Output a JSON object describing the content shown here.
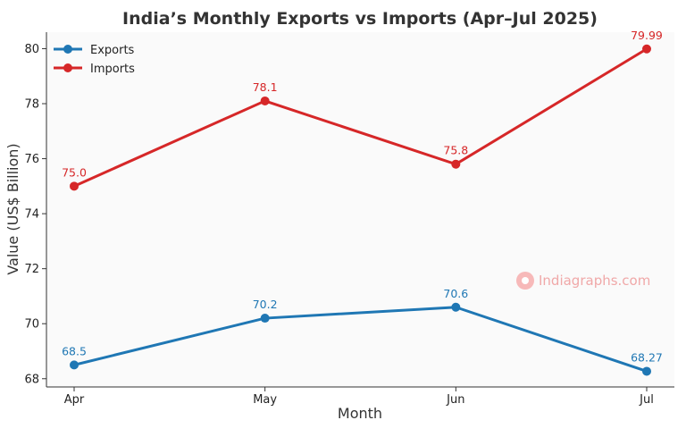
{
  "chart_data": {
    "type": "line",
    "title": "India’s Monthly Exports vs Imports (Apr–Jul 2025)",
    "xlabel": "Month",
    "ylabel": "Value (US$ Billion)",
    "categories": [
      "Apr",
      "May",
      "Jun",
      "Jul"
    ],
    "ylim": [
      67.7,
      80.6
    ],
    "yticks": [
      68,
      70,
      72,
      74,
      76,
      78,
      80
    ],
    "grid": false,
    "legend_position": "top-left",
    "series": [
      {
        "name": "Exports",
        "values": [
          68.5,
          70.2,
          70.6,
          68.27
        ],
        "labels": [
          "68.5",
          "70.2",
          "70.6",
          "68.27"
        ],
        "color": "#1f77b4"
      },
      {
        "name": "Imports",
        "values": [
          75.0,
          78.1,
          75.8,
          79.99
        ],
        "labels": [
          "75.0",
          "78.1",
          "75.8",
          "79.99"
        ],
        "color": "#d62728"
      }
    ]
  },
  "watermark": {
    "text": "Indiagraphs.com",
    "color": "#f4a6a6"
  }
}
